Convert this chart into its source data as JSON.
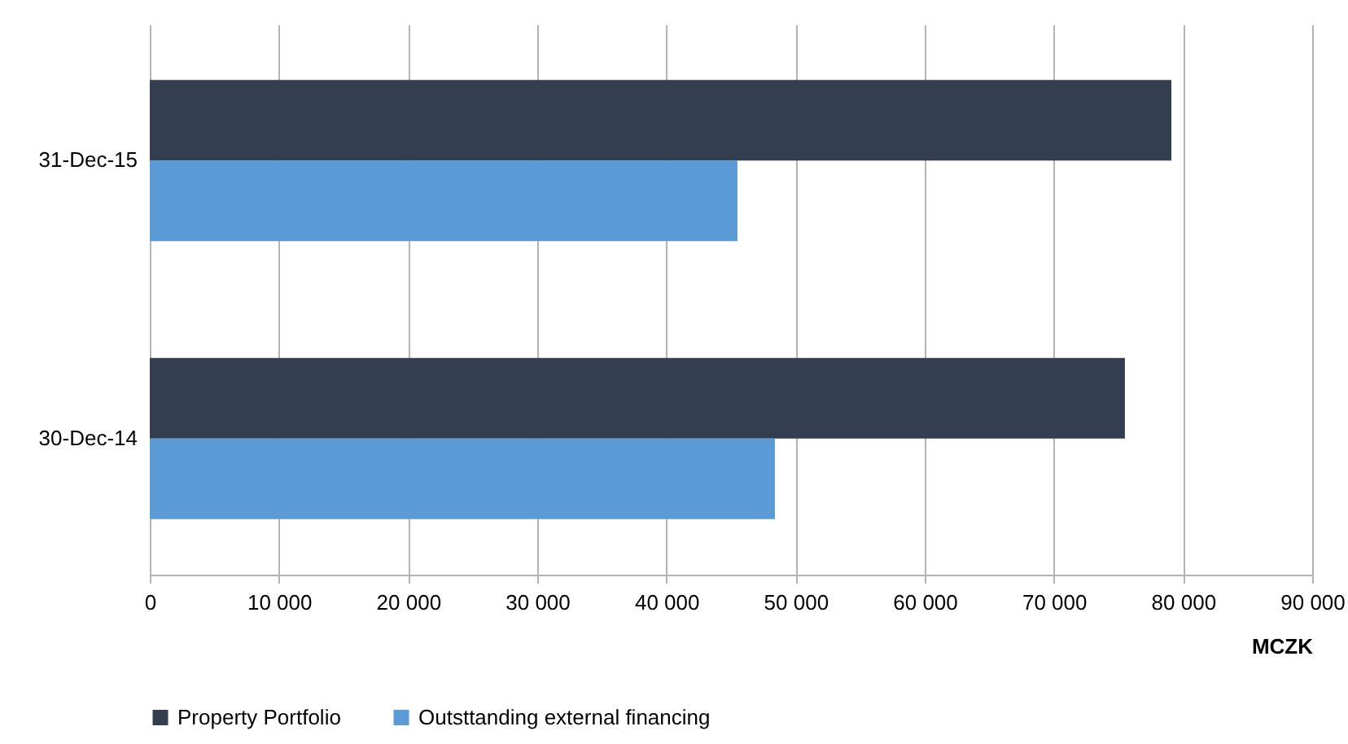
{
  "chart_data": {
    "type": "bar",
    "orientation": "horizontal",
    "xlabel": "MCZK",
    "categories": [
      "31-Dec-15",
      "30-Dec-14"
    ],
    "series": [
      {
        "name": "Property Portfolio",
        "color": "#333f50",
        "values": [
          79100,
          75500
        ]
      },
      {
        "name": "Outsttanding external financing",
        "color": "#5b9bd5",
        "values": [
          45500,
          48400
        ]
      }
    ],
    "xlim": [
      0,
      90000
    ],
    "xticks": [
      0,
      {
        "value": 10000,
        "label": "10 000"
      },
      {
        "value": 20000,
        "label": "20 000"
      },
      {
        "value": 30000,
        "label": "30 000"
      },
      {
        "value": 40000,
        "label": "40 000"
      },
      {
        "value": 50000,
        "label": "50 000"
      },
      {
        "value": 60000,
        "label": "60 000"
      },
      {
        "value": 70000,
        "label": "70 000"
      },
      {
        "value": 80000,
        "label": "80 000"
      },
      {
        "value": 90000,
        "label": "90 000"
      }
    ],
    "grid": "x",
    "legend": "bottom"
  }
}
